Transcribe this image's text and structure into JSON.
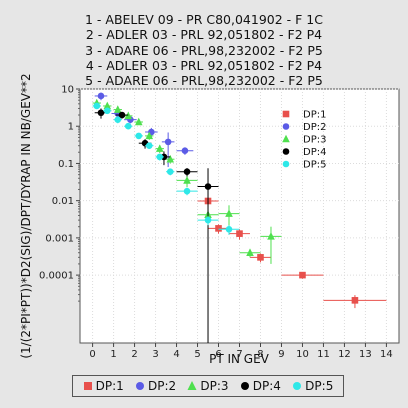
{
  "chart_data": {
    "type": "scatter",
    "title_lines": [
      "1 - ABELEV 09 - PR C80,041902 - F 1C",
      "2 - ADLER 03 - PRL 92,051802 - F2 P4",
      "3 - ADARE 06 - PRL,98,232002 - F2 P5",
      "4 - ADLER 03 - PRL 92,051802 - F2 P4",
      "5 - ADARE 06 - PRL,98,232002 - F2 P5"
    ],
    "xlabel": "PT IN GEV",
    "ylabel": "(1/(2*PI*PT))*D2(SIG)/DPT/DYRAP IN NB/GEV**2",
    "xlim": [
      -0.6,
      14.6
    ],
    "ylim": [
      1.5e-06,
      10
    ],
    "y_scale": "log",
    "x_ticks": [
      0,
      1,
      2,
      3,
      4,
      5,
      6,
      7,
      8,
      9,
      10,
      11,
      12,
      13,
      14
    ],
    "y_ticks": [
      {
        "value": 10,
        "label": "10"
      },
      {
        "value": 1,
        "label": "1"
      },
      {
        "value": 0.1,
        "label": "0.1"
      },
      {
        "value": 0.01,
        "label": "0.01"
      },
      {
        "value": 0.001,
        "label": "0.001"
      },
      {
        "value": 0.0001,
        "label": "0.0001"
      }
    ],
    "grid": true,
    "legend_position": "top-right inside plot and bottom below plot",
    "series": [
      {
        "name": "DP:1",
        "color": "#e8504c",
        "marker": "square",
        "points": [
          {
            "x": 5.5,
            "y": 0.0098,
            "xerr": 0.5,
            "yerr": 0.003
          },
          {
            "x": 6.0,
            "y": 0.0018,
            "xerr": 0.5,
            "yerr": 0.0005
          },
          {
            "x": 7.0,
            "y": 0.0013,
            "xerr": 0.5,
            "yerr": 0.0004
          },
          {
            "x": 8.0,
            "y": 0.0003,
            "xerr": 0.5,
            "yerr": 8e-05
          },
          {
            "x": 10.0,
            "y": 0.0001,
            "xerr": 1.0,
            "yerr": 2e-05
          },
          {
            "x": 12.5,
            "y": 2.1e-05,
            "xerr": 1.5,
            "yerr": 8e-06
          }
        ]
      },
      {
        "name": "DP:2",
        "color": "#5b5be6",
        "marker": "circle",
        "points": [
          {
            "x": 0.4,
            "y": 6.5,
            "xerr": 0.3,
            "yerr": 1.5
          },
          {
            "x": 1.2,
            "y": 2.2,
            "xerr": 0.3,
            "yerr": 0.4
          },
          {
            "x": 1.8,
            "y": 1.5,
            "xerr": 0.3,
            "yerr": 0.3
          },
          {
            "x": 2.8,
            "y": 0.7,
            "xerr": 0.3,
            "yerr": 0.2
          },
          {
            "x": 3.6,
            "y": 0.38,
            "xerr": 0.3,
            "yerr": 0.3
          },
          {
            "x": 4.4,
            "y": 0.22,
            "xerr": 0.4,
            "yerr": 0.05
          }
        ]
      },
      {
        "name": "DP:3",
        "color": "#4fe04f",
        "marker": "triangle",
        "points": [
          {
            "x": 0.2,
            "y": 4.2,
            "xerr": 0.2,
            "yerr": 0.9
          },
          {
            "x": 0.7,
            "y": 3.5,
            "xerr": 0.2,
            "yerr": 0.6
          },
          {
            "x": 1.2,
            "y": 2.8,
            "xerr": 0.2,
            "yerr": 0.5
          },
          {
            "x": 1.7,
            "y": 1.9,
            "xerr": 0.2,
            "yerr": 0.3
          },
          {
            "x": 2.2,
            "y": 1.3,
            "xerr": 0.2,
            "yerr": 0.2
          },
          {
            "x": 2.7,
            "y": 0.55,
            "xerr": 0.2,
            "yerr": 0.12
          },
          {
            "x": 3.2,
            "y": 0.25,
            "xerr": 0.2,
            "yerr": 0.06
          },
          {
            "x": 3.7,
            "y": 0.13,
            "xerr": 0.2,
            "yerr": 0.03
          },
          {
            "x": 4.5,
            "y": 0.035,
            "xerr": 0.5,
            "yerr": 0.012
          },
          {
            "x": 5.5,
            "y": 0.0042,
            "xerr": 0.5,
            "yerr": 0.0015
          },
          {
            "x": 6.5,
            "y": 0.0045,
            "xerr": 0.5,
            "yerr": 0.003
          },
          {
            "x": 7.5,
            "y": 0.0004,
            "xerr": 0.5,
            "yerr": 0.0001
          },
          {
            "x": 8.5,
            "y": 0.0011,
            "xerr": 0.5,
            "yerr": 0.0009
          }
        ]
      },
      {
        "name": "DP:4",
        "color": "#000000",
        "marker": "circle",
        "points": [
          {
            "x": 0.4,
            "y": 2.3,
            "xerr": 0.3,
            "yerr": 0.7
          },
          {
            "x": 1.4,
            "y": 2.0,
            "xerr": 0.3,
            "yerr": 0.4
          },
          {
            "x": 2.5,
            "y": 0.35,
            "xerr": 0.3,
            "yerr": 0.1
          },
          {
            "x": 3.4,
            "y": 0.15,
            "xerr": 0.3,
            "yerr": 0.06
          },
          {
            "x": 4.5,
            "y": 0.06,
            "xerr": 0.5,
            "yerr": 0.015
          },
          {
            "x": 5.5,
            "y": 0.024,
            "xerr": 0.5,
            "yerr": 0.05
          }
        ]
      },
      {
        "name": "DP:5",
        "color": "#2ee8e8",
        "marker": "circle",
        "points": [
          {
            "x": 0.2,
            "y": 3.5,
            "xerr": 0.2,
            "yerr": 0.5
          },
          {
            "x": 0.7,
            "y": 2.6,
            "xerr": 0.2,
            "yerr": 0.4
          },
          {
            "x": 1.2,
            "y": 1.5,
            "xerr": 0.2,
            "yerr": 0.3
          },
          {
            "x": 1.7,
            "y": 1.0,
            "xerr": 0.2,
            "yerr": 0.15
          },
          {
            "x": 2.2,
            "y": 0.55,
            "xerr": 0.2,
            "yerr": 0.1
          },
          {
            "x": 2.7,
            "y": 0.3,
            "xerr": 0.2,
            "yerr": 0.05
          },
          {
            "x": 3.2,
            "y": 0.15,
            "xerr": 0.2,
            "yerr": 0.03
          },
          {
            "x": 3.7,
            "y": 0.06,
            "xerr": 0.2,
            "yerr": 0.012
          },
          {
            "x": 4.5,
            "y": 0.018,
            "xerr": 0.5,
            "yerr": 0.004
          },
          {
            "x": 5.5,
            "y": 0.003,
            "xerr": 0.5,
            "yerr": 0.0008
          },
          {
            "x": 6.5,
            "y": 0.0017,
            "xerr": 0.5,
            "yerr": 0.0005
          }
        ]
      }
    ]
  }
}
